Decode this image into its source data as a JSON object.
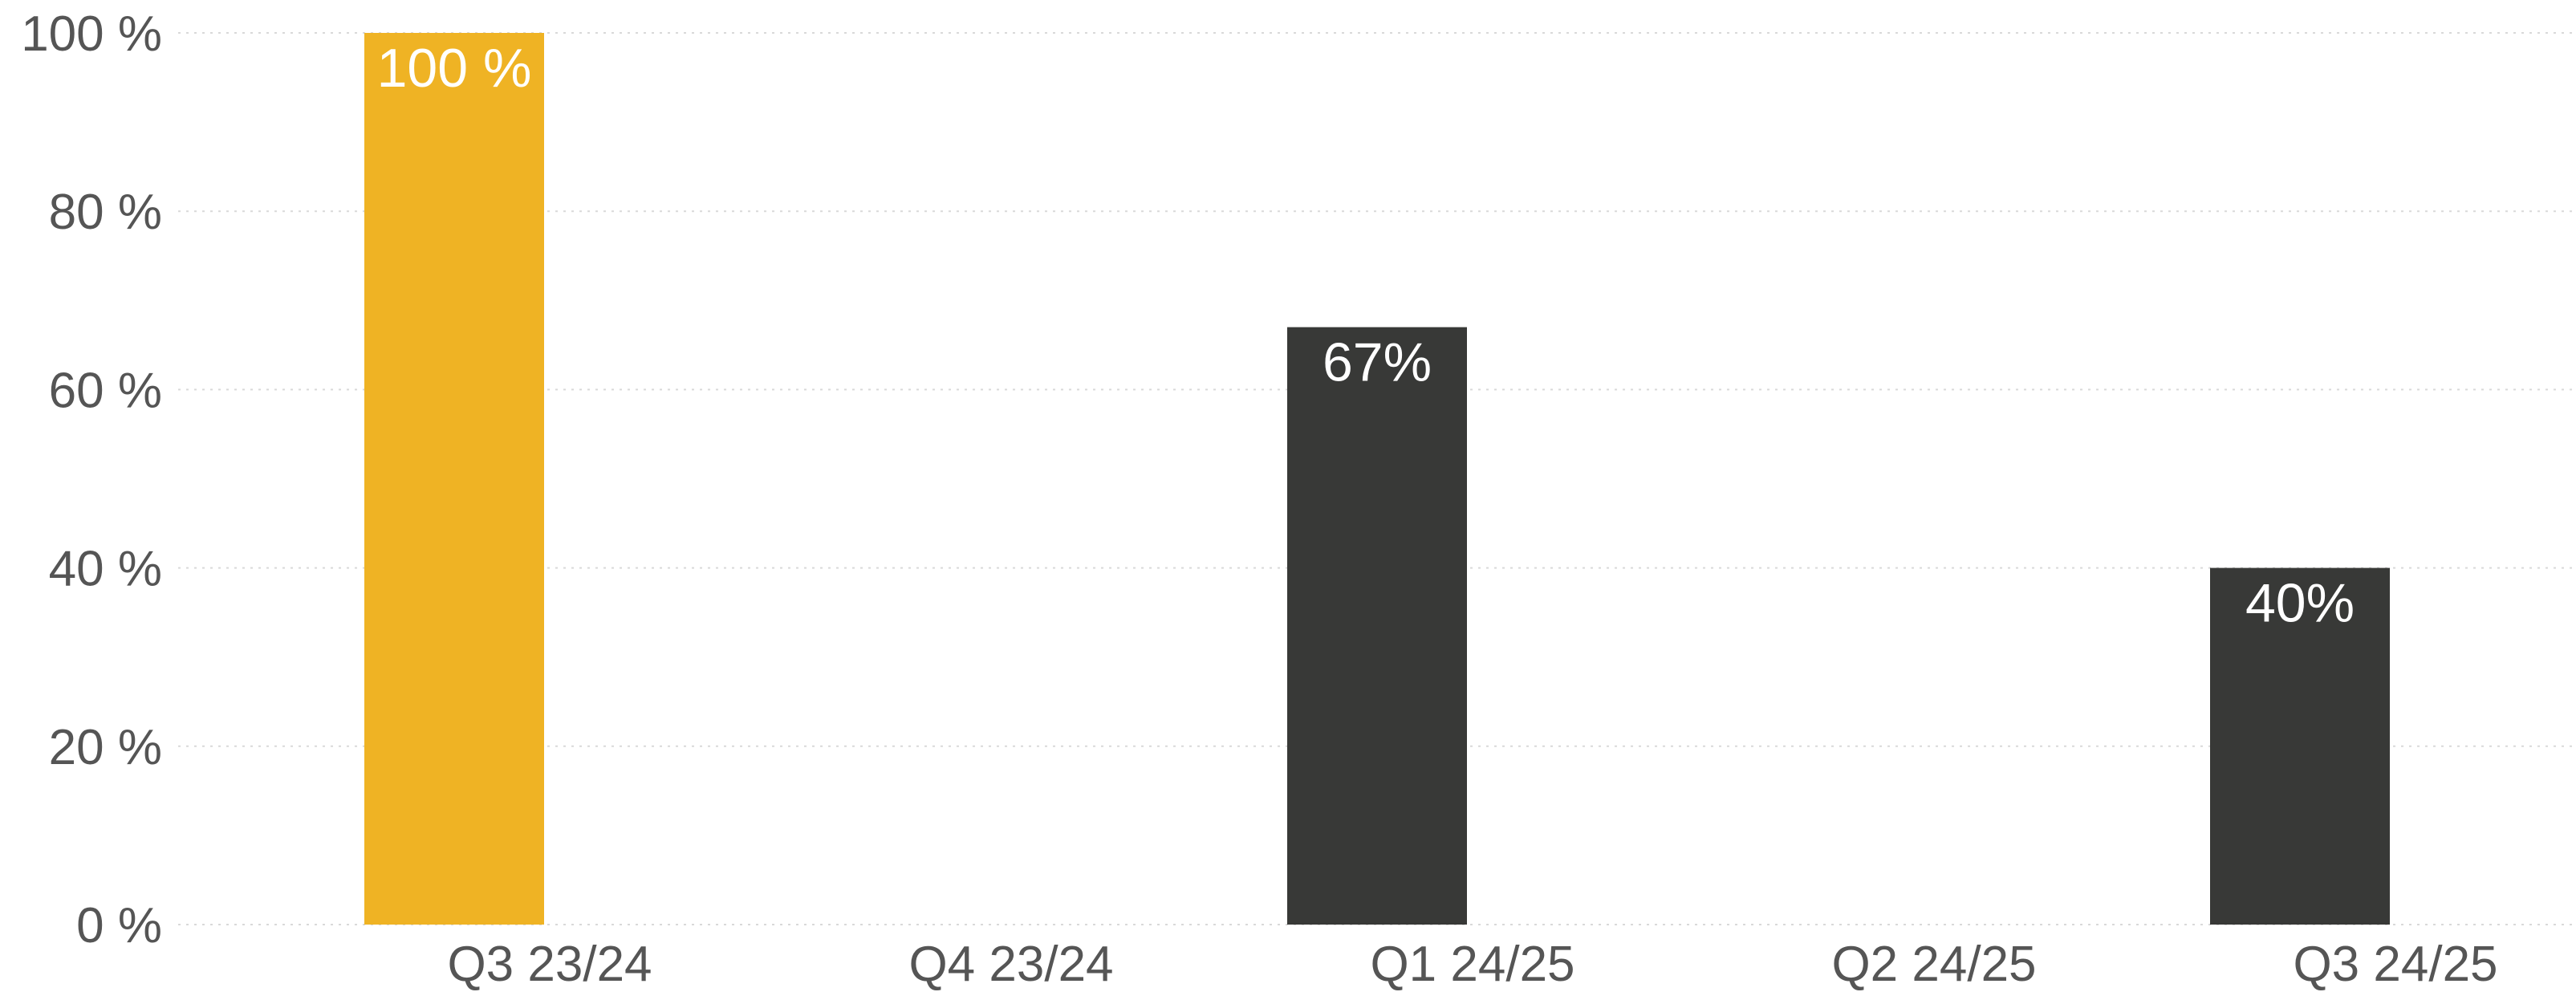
{
  "chart_data": {
    "type": "bar",
    "categories": [
      "Q3 23/24",
      "Q4 23/24",
      "Q1 24/25",
      "Q2 24/25",
      "Q3 24/25"
    ],
    "series": [
      {
        "values": [
          100,
          null,
          67,
          null,
          40
        ],
        "data_labels": [
          "100 %",
          "",
          "67%",
          "",
          "40%"
        ],
        "colors": [
          "#EFB324",
          null,
          "#383937",
          null,
          "#383937"
        ]
      }
    ],
    "y_ticks": [
      "0 %",
      "20 %",
      "40 %",
      "60 %",
      "80 %",
      "100 %"
    ],
    "ylim": [
      0,
      100
    ],
    "grid": true,
    "legend": "none",
    "title": "",
    "xlabel": "",
    "ylabel": ""
  }
}
